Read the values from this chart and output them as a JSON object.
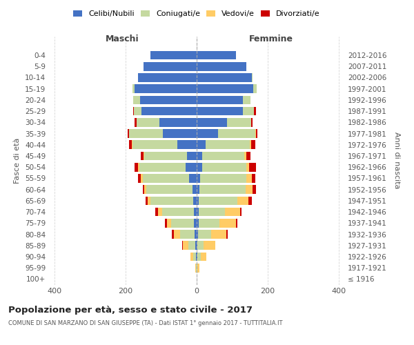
{
  "age_groups": [
    "100+",
    "95-99",
    "90-94",
    "85-89",
    "80-84",
    "75-79",
    "70-74",
    "65-69",
    "60-64",
    "55-59",
    "50-54",
    "45-49",
    "40-44",
    "35-39",
    "30-34",
    "25-29",
    "20-24",
    "15-19",
    "10-14",
    "5-9",
    "0-4"
  ],
  "birth_years": [
    "≤ 1916",
    "1917-1921",
    "1922-1926",
    "1927-1931",
    "1932-1936",
    "1937-1941",
    "1942-1946",
    "1947-1951",
    "1952-1956",
    "1957-1961",
    "1962-1966",
    "1967-1971",
    "1972-1976",
    "1977-1981",
    "1982-1986",
    "1987-1991",
    "1992-1996",
    "1997-2001",
    "2002-2006",
    "2007-2011",
    "2012-2016"
  ],
  "males": {
    "celibi": [
      0,
      0,
      2,
      4,
      5,
      7,
      8,
      10,
      12,
      22,
      32,
      28,
      55,
      95,
      105,
      155,
      160,
      175,
      165,
      150,
      130
    ],
    "coniugati": [
      0,
      2,
      8,
      20,
      42,
      65,
      90,
      120,
      130,
      130,
      130,
      120,
      125,
      95,
      65,
      22,
      18,
      5,
      0,
      0,
      0
    ],
    "vedovi": [
      0,
      2,
      8,
      15,
      18,
      12,
      10,
      8,
      5,
      5,
      3,
      2,
      2,
      0,
      0,
      0,
      0,
      0,
      0,
      0,
      0
    ],
    "divorziati": [
      0,
      0,
      0,
      2,
      5,
      5,
      8,
      5,
      5,
      8,
      10,
      8,
      8,
      5,
      5,
      2,
      0,
      0,
      0,
      0,
      0
    ]
  },
  "females": {
    "nubili": [
      0,
      0,
      2,
      2,
      3,
      5,
      5,
      5,
      8,
      10,
      15,
      15,
      25,
      60,
      85,
      130,
      130,
      160,
      155,
      140,
      110
    ],
    "coniugate": [
      0,
      2,
      10,
      18,
      38,
      60,
      75,
      110,
      130,
      130,
      125,
      120,
      125,
      105,
      68,
      32,
      22,
      10,
      3,
      0,
      0
    ],
    "vedove": [
      0,
      5,
      15,
      32,
      42,
      45,
      42,
      30,
      20,
      15,
      8,
      5,
      3,
      2,
      0,
      0,
      0,
      0,
      0,
      0,
      0
    ],
    "divorziate": [
      0,
      0,
      0,
      0,
      5,
      5,
      5,
      10,
      10,
      10,
      20,
      12,
      12,
      5,
      5,
      5,
      0,
      0,
      0,
      0,
      0
    ]
  },
  "colors": {
    "celibi": "#4472C4",
    "coniugati": "#C5D9A0",
    "vedovi": "#FFCC66",
    "divorziati": "#CC0000"
  },
  "xlim": 420,
  "title": "Popolazione per età, sesso e stato civile - 2017",
  "subtitle": "COMUNE DI SAN MARZANO DI SAN GIUSEPPE (TA) - Dati ISTAT 1° gennaio 2017 - TUTTITALIA.IT",
  "ylabel_left": "Fasce di età",
  "ylabel_right": "Anni di nascita",
  "legend_labels": [
    "Celibi/Nubili",
    "Coniugati/e",
    "Vedovi/e",
    "Divorziati/e"
  ],
  "maschi_label": "Maschi",
  "femmine_label": "Femmine",
  "background_color": "#FFFFFF",
  "grid_color": "#CCCCCC"
}
